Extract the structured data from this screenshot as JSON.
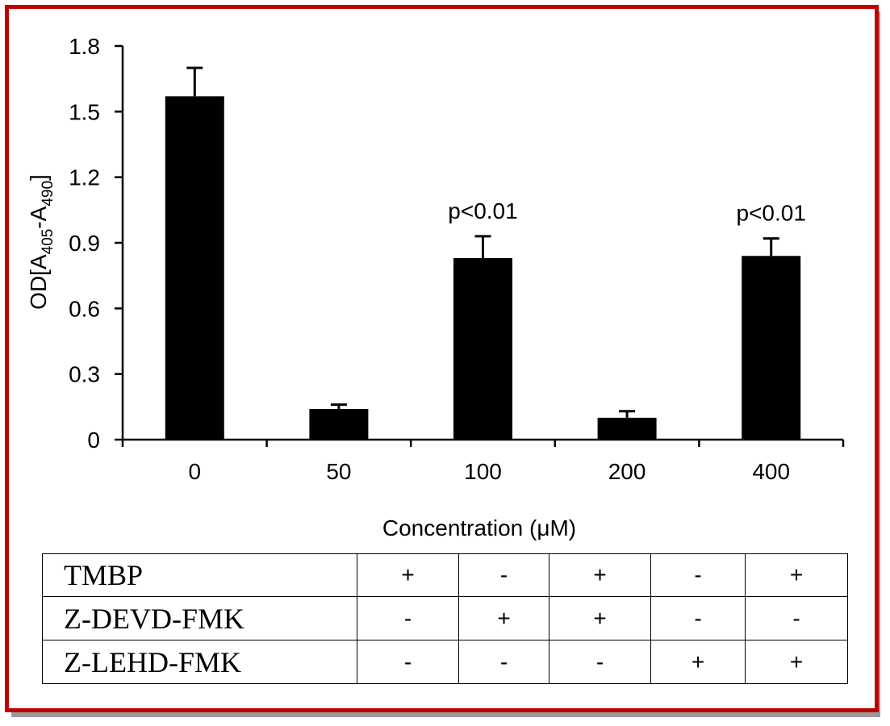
{
  "chart_data": {
    "type": "bar",
    "categories": [
      "0",
      "50",
      "100",
      "200",
      "400"
    ],
    "values": [
      1.57,
      0.14,
      0.83,
      0.1,
      0.84
    ],
    "errors": [
      0.13,
      0.02,
      0.1,
      0.03,
      0.08
    ],
    "annotations": [
      "",
      "",
      "p<0.01",
      "",
      "p<0.01"
    ],
    "ylim": [
      0,
      1.8
    ],
    "yticks": [
      "0",
      "0.3",
      "0.6",
      "0.9",
      "1.2",
      "1.5",
      "1.8"
    ],
    "xlabel": "Concentration (μM)",
    "ylabel": {
      "main": "OD[A",
      "sub1": "405",
      "mid": "-A",
      "sub2": "490",
      "end": "]"
    },
    "bar_color": "#000000",
    "grid": false
  },
  "conditions": [
    {
      "label": "TMBP",
      "values": [
        "+",
        "-",
        "+",
        "-",
        "+"
      ]
    },
    {
      "label": "Z-DEVD-FMK",
      "values": [
        "-",
        "+",
        "+",
        "-",
        "-"
      ]
    },
    {
      "label": "Z-LEHD-FMK",
      "values": [
        "-",
        "-",
        "-",
        "+",
        "+"
      ]
    }
  ],
  "frame_color": "#c00000"
}
